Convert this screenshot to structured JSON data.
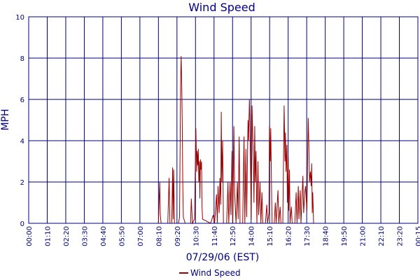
{
  "chart_data": {
    "type": "line",
    "title": "Wind Speed",
    "xlabel": "07/29/06 (EST)",
    "ylabel": "MPH",
    "ylim": [
      0,
      10
    ],
    "yticks": [
      0,
      2,
      4,
      6,
      8,
      10
    ],
    "xlim_minutes": [
      0,
      1455
    ],
    "xticks": [
      "00:00",
      "01:10",
      "02:20",
      "03:30",
      "04:40",
      "05:50",
      "07:00",
      "08:10",
      "09:20",
      "10:30",
      "11:40",
      "12:50",
      "14:00",
      "15:10",
      "16:20",
      "17:30",
      "18:40",
      "19:50",
      "21:00",
      "22:10",
      "23:20",
      "00:15"
    ],
    "grid": true,
    "legend": "bottom-center",
    "colors": {
      "series": "#990000",
      "grid": "#000080",
      "axis": "#000080",
      "text": "#000080"
    },
    "series": [
      {
        "name": "Wind Speed",
        "points": [
          [
            "00:00",
            0
          ],
          [
            "08:05",
            0
          ],
          [
            "08:10",
            2.0
          ],
          [
            "08:12",
            0.4
          ],
          [
            "08:15",
            0
          ],
          [
            "08:40",
            0
          ],
          [
            "08:45",
            2.2
          ],
          [
            "08:48",
            0
          ],
          [
            "08:55",
            0
          ],
          [
            "08:58",
            2.7
          ],
          [
            "09:00",
            0.2
          ],
          [
            "09:02",
            2.6
          ],
          [
            "09:05",
            0
          ],
          [
            "09:20",
            0
          ],
          [
            "09:24",
            0.3
          ],
          [
            "09:28",
            7.0
          ],
          [
            "09:30",
            8.1
          ],
          [
            "09:32",
            6.8
          ],
          [
            "09:34",
            5.0
          ],
          [
            "09:36",
            2.0
          ],
          [
            "09:38",
            0.3
          ],
          [
            "09:45",
            0
          ],
          [
            "10:05",
            0
          ],
          [
            "10:08",
            1.2
          ],
          [
            "10:12",
            0
          ],
          [
            "10:20",
            0.2
          ],
          [
            "10:25",
            4.6
          ],
          [
            "10:28",
            2.5
          ],
          [
            "10:30",
            3.5
          ],
          [
            "10:32",
            2.8
          ],
          [
            "10:34",
            3.6
          ],
          [
            "10:36",
            2.0
          ],
          [
            "10:38",
            3.0
          ],
          [
            "10:40",
            1.2
          ],
          [
            "10:42",
            3.1
          ],
          [
            "10:44",
            2.6
          ],
          [
            "10:46",
            3.0
          ],
          [
            "10:48",
            0.8
          ],
          [
            "10:50",
            0.2
          ],
          [
            "11:20",
            0
          ],
          [
            "11:30",
            0.4
          ],
          [
            "11:35",
            0
          ],
          [
            "11:42",
            1.4
          ],
          [
            "11:45",
            0
          ],
          [
            "11:48",
            1.8
          ],
          [
            "11:52",
            0.5
          ],
          [
            "11:55",
            2.2
          ],
          [
            "11:58",
            0.9
          ],
          [
            "12:00",
            5.4
          ],
          [
            "12:02",
            2.0
          ],
          [
            "12:05",
            4.0
          ],
          [
            "12:08",
            0
          ],
          [
            "12:20",
            0
          ],
          [
            "12:25",
            2.0
          ],
          [
            "12:28",
            0
          ],
          [
            "12:33",
            2.0
          ],
          [
            "12:36",
            0.4
          ],
          [
            "12:40",
            3.5
          ],
          [
            "12:43",
            0
          ],
          [
            "12:47",
            4.7
          ],
          [
            "12:50",
            1.5
          ],
          [
            "12:55",
            0
          ],
          [
            "13:00",
            2.0
          ],
          [
            "13:03",
            0.2
          ],
          [
            "13:07",
            4.2
          ],
          [
            "13:10",
            0
          ],
          [
            "13:20",
            0
          ],
          [
            "13:25",
            4.2
          ],
          [
            "13:28",
            0
          ],
          [
            "13:32",
            3.6
          ],
          [
            "13:35",
            0.3
          ],
          [
            "13:40",
            5.0
          ],
          [
            "13:42",
            4.0
          ],
          [
            "13:45",
            6.0
          ],
          [
            "13:47",
            5.0
          ],
          [
            "13:50",
            2.0
          ],
          [
            "13:52",
            0.2
          ],
          [
            "13:55",
            5.7
          ],
          [
            "13:58",
            4.0
          ],
          [
            "14:00",
            3.0
          ],
          [
            "14:02",
            1.0
          ],
          [
            "14:05",
            4.7
          ],
          [
            "14:07",
            2.0
          ],
          [
            "14:10",
            3.5
          ],
          [
            "14:13",
            0
          ],
          [
            "14:17",
            3.0
          ],
          [
            "14:20",
            0.4
          ],
          [
            "14:25",
            2.0
          ],
          [
            "14:28",
            0
          ],
          [
            "14:32",
            1.5
          ],
          [
            "14:35",
            0
          ],
          [
            "14:45",
            0
          ],
          [
            "14:50",
            0.9
          ],
          [
            "14:53",
            0
          ],
          [
            "14:58",
            0.5
          ],
          [
            "15:00",
            4.7
          ],
          [
            "15:03",
            3.0
          ],
          [
            "15:05",
            4.6
          ],
          [
            "15:08",
            1.5
          ],
          [
            "15:10",
            0
          ],
          [
            "15:18",
            0
          ],
          [
            "15:22",
            1.0
          ],
          [
            "15:25",
            0
          ],
          [
            "15:32",
            1.6
          ],
          [
            "15:35",
            0
          ],
          [
            "15:40",
            0.8
          ],
          [
            "15:43",
            0
          ],
          [
            "15:50",
            0
          ],
          [
            "15:55",
            5.7
          ],
          [
            "15:58",
            3.0
          ],
          [
            "16:00",
            4.4
          ],
          [
            "16:02",
            2.5
          ],
          [
            "16:05",
            3.8
          ],
          [
            "16:07",
            1.0
          ],
          [
            "16:10",
            3.2
          ],
          [
            "16:12",
            0.6
          ],
          [
            "16:15",
            2.6
          ],
          [
            "16:17",
            0
          ],
          [
            "16:22",
            0.8
          ],
          [
            "16:25",
            0
          ],
          [
            "16:35",
            0
          ],
          [
            "16:40",
            1.5
          ],
          [
            "16:43",
            0
          ],
          [
            "16:48",
            1.8
          ],
          [
            "16:50",
            0.2
          ],
          [
            "16:55",
            1.6
          ],
          [
            "16:58",
            0
          ],
          [
            "17:05",
            2.3
          ],
          [
            "17:08",
            0.5
          ],
          [
            "17:12",
            1.5
          ],
          [
            "17:15",
            1.8
          ],
          [
            "17:20",
            0.6
          ],
          [
            "17:25",
            5.1
          ],
          [
            "17:27",
            4.0
          ],
          [
            "17:30",
            2.0
          ],
          [
            "17:33",
            2.5
          ],
          [
            "17:36",
            1.8
          ],
          [
            "17:38",
            2.9
          ],
          [
            "17:40",
            0.5
          ],
          [
            "17:42",
            1.5
          ],
          [
            "17:45",
            0
          ],
          [
            "24:15",
            0
          ]
        ]
      }
    ]
  }
}
